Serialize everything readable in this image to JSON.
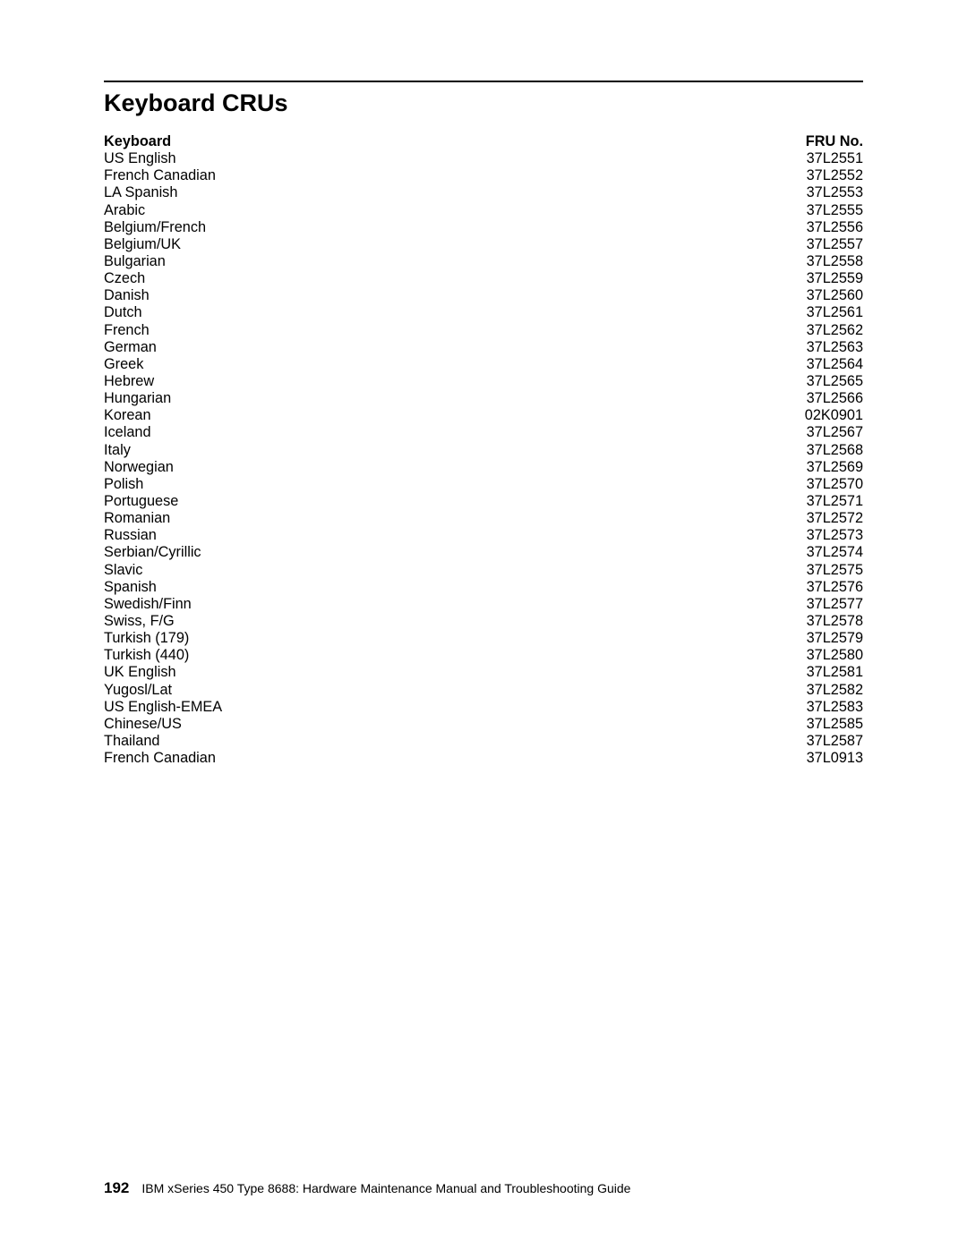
{
  "heading": "Keyboard CRUs",
  "table": {
    "header": {
      "left": "Keyboard",
      "right": "FRU No."
    },
    "rows": [
      {
        "left": "US English",
        "right": "37L2551"
      },
      {
        "left": "French Canadian",
        "right": "37L2552"
      },
      {
        "left": "LA Spanish",
        "right": "37L2553"
      },
      {
        "left": "Arabic",
        "right": "37L2555"
      },
      {
        "left": "Belgium/French",
        "right": "37L2556"
      },
      {
        "left": "Belgium/UK",
        "right": "37L2557"
      },
      {
        "left": "Bulgarian",
        "right": "37L2558"
      },
      {
        "left": "Czech",
        "right": "37L2559"
      },
      {
        "left": "Danish",
        "right": "37L2560"
      },
      {
        "left": "Dutch",
        "right": "37L2561"
      },
      {
        "left": "French",
        "right": "37L2562"
      },
      {
        "left": "German",
        "right": "37L2563"
      },
      {
        "left": "Greek",
        "right": "37L2564"
      },
      {
        "left": "Hebrew",
        "right": "37L2565"
      },
      {
        "left": "Hungarian",
        "right": "37L2566"
      },
      {
        "left": "Korean",
        "right": "02K0901"
      },
      {
        "left": "Iceland",
        "right": "37L2567"
      },
      {
        "left": "Italy",
        "right": "37L2568"
      },
      {
        "left": "Norwegian",
        "right": "37L2569"
      },
      {
        "left": "Polish",
        "right": "37L2570"
      },
      {
        "left": "Portuguese",
        "right": "37L2571"
      },
      {
        "left": "Romanian",
        "right": "37L2572"
      },
      {
        "left": "Russian",
        "right": "37L2573"
      },
      {
        "left": "Serbian/Cyrillic",
        "right": "37L2574"
      },
      {
        "left": "Slavic",
        "right": "37L2575"
      },
      {
        "left": "Spanish",
        "right": "37L2576"
      },
      {
        "left": "Swedish/Finn",
        "right": "37L2577"
      },
      {
        "left": "Swiss, F/G",
        "right": "37L2578"
      },
      {
        "left": "Turkish (179)",
        "right": "37L2579"
      },
      {
        "left": "Turkish (440)",
        "right": "37L2580"
      },
      {
        "left": "UK English",
        "right": "37L2581"
      },
      {
        "left": "Yugosl/Lat",
        "right": "37L2582"
      },
      {
        "left": "US English-EMEA",
        "right": "37L2583"
      },
      {
        "left": "Chinese/US",
        "right": "37L2585"
      },
      {
        "left": "Thailand",
        "right": "37L2587"
      },
      {
        "left": "French Canadian",
        "right": "37L0913"
      }
    ]
  },
  "footer": {
    "page_number": "192",
    "text": "IBM xSeries 450 Type 8688:  Hardware Maintenance Manual and Troubleshooting Guide"
  }
}
